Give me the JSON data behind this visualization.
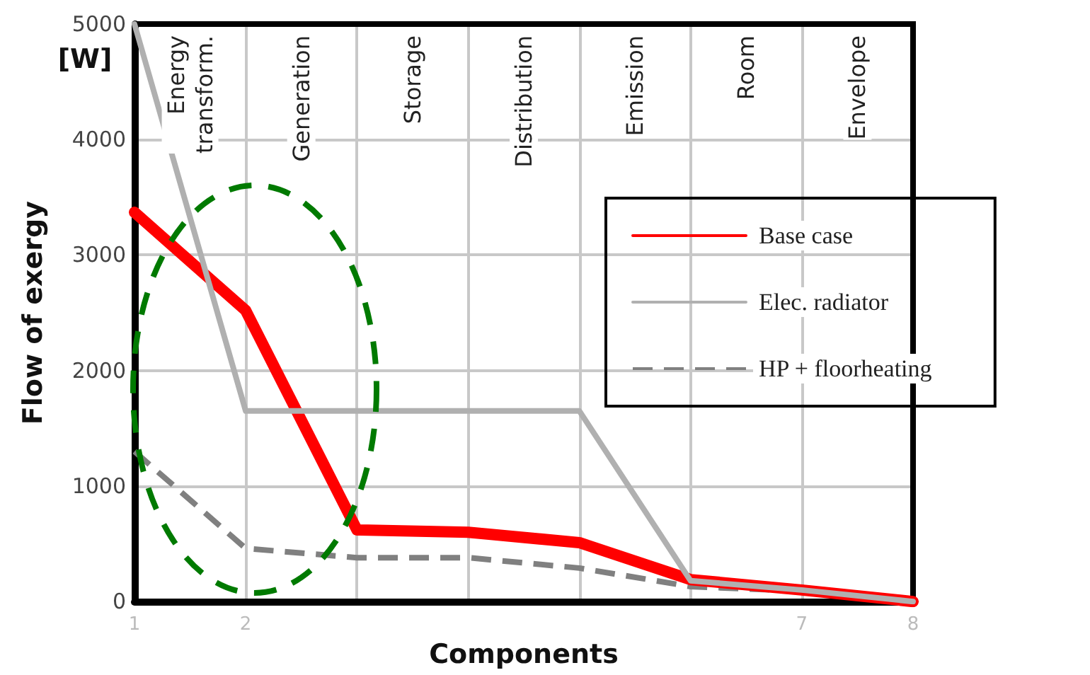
{
  "chart_data": {
    "type": "line",
    "xlabel": "Components",
    "ylabel": "Flow of exergy",
    "annotations": [
      "[W]",
      "Energy transform.",
      "Generation",
      "Storage",
      "Distribution",
      "Emission",
      "Room",
      "Envelope"
    ],
    "x": [
      1,
      2,
      3,
      4,
      5,
      6,
      7,
      8
    ],
    "series": [
      {
        "name": "Base case",
        "color": "#ff0000",
        "values": [
          3370,
          2520,
          620,
          600,
          510,
          190,
          100,
          0
        ]
      },
      {
        "name": "Elec. radiator",
        "color": "#b0b0b0",
        "values": [
          5000,
          1650,
          1650,
          1650,
          1650,
          180,
          100,
          0
        ]
      },
      {
        "name": "HP + floorheating",
        "color": "#808080",
        "line_style": "dashed",
        "values": [
          1300,
          460,
          380,
          380,
          290,
          130,
          90,
          0
        ]
      }
    ],
    "xlim": [
      1,
      8
    ],
    "xticks": [
      1,
      2,
      {
        "value": 3,
        "label": null
      },
      {
        "value": 4,
        "label": null
      },
      {
        "value": 5,
        "label": null
      },
      {
        "value": 6,
        "label": null
      },
      7,
      8
    ],
    "ylim": [
      0,
      5000
    ],
    "yticks": [
      0,
      1000,
      2000,
      3000,
      4000,
      5000
    ],
    "grid": true,
    "legend": "right",
    "marker": "none",
    "line_style": "solid"
  }
}
